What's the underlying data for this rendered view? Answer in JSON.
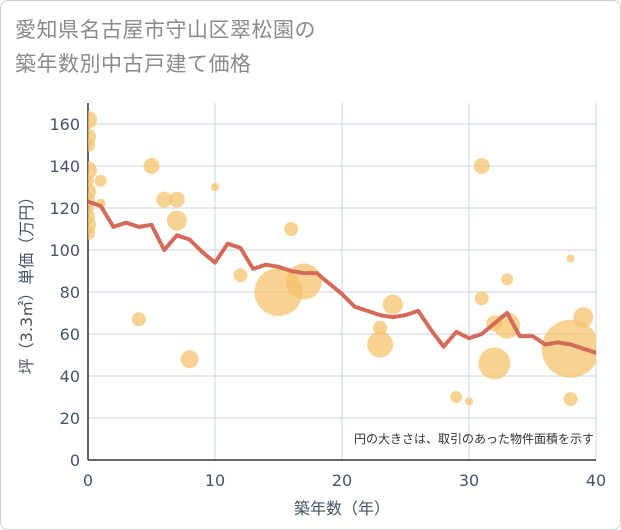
{
  "title_lines": [
    "愛知県名古屋市守山区翠松園の",
    "築年数別中古戸建て価格"
  ],
  "chart_data": {
    "type": "scatter",
    "title": "愛知県名古屋市守山区翠松園の築年数別中古戸建て価格",
    "xlabel": "築年数（年）",
    "ylabel": "坪（3.3㎡）単価（万円）",
    "xlim": [
      0,
      40
    ],
    "ylim": [
      0,
      170
    ],
    "xticks": [
      0,
      10,
      20,
      30,
      40
    ],
    "yticks": [
      0,
      20,
      40,
      60,
      80,
      100,
      120,
      140,
      160
    ],
    "grid": true,
    "note": "円の大きさは、取引のあった物件面積を示す",
    "colors": {
      "bubble": "#f5c067",
      "line": "#d36b58",
      "grid": "#c9d6e3",
      "text": "#44546a"
    },
    "bubbles": [
      {
        "x": 0,
        "y": 162,
        "s": 9
      },
      {
        "x": 0,
        "y": 154,
        "s": 8
      },
      {
        "x": 0,
        "y": 150,
        "s": 7
      },
      {
        "x": 0,
        "y": 138,
        "s": 9
      },
      {
        "x": 0,
        "y": 133,
        "s": 6
      },
      {
        "x": 0,
        "y": 128,
        "s": 8
      },
      {
        "x": 0,
        "y": 124,
        "s": 7
      },
      {
        "x": 0,
        "y": 120,
        "s": 6
      },
      {
        "x": 0,
        "y": 116,
        "s": 7
      },
      {
        "x": 0,
        "y": 112,
        "s": 8
      },
      {
        "x": 0,
        "y": 108,
        "s": 7
      },
      {
        "x": 1,
        "y": 133,
        "s": 6
      },
      {
        "x": 1,
        "y": 122,
        "s": 5
      },
      {
        "x": 4,
        "y": 67,
        "s": 7
      },
      {
        "x": 5,
        "y": 140,
        "s": 8
      },
      {
        "x": 6,
        "y": 124,
        "s": 8
      },
      {
        "x": 7,
        "y": 124,
        "s": 8
      },
      {
        "x": 7,
        "y": 114,
        "s": 10
      },
      {
        "x": 8,
        "y": 48,
        "s": 9
      },
      {
        "x": 10,
        "y": 130,
        "s": 4
      },
      {
        "x": 12,
        "y": 88,
        "s": 7
      },
      {
        "x": 15,
        "y": 80,
        "s": 24
      },
      {
        "x": 16,
        "y": 110,
        "s": 7
      },
      {
        "x": 17,
        "y": 85,
        "s": 18
      },
      {
        "x": 23,
        "y": 63,
        "s": 7
      },
      {
        "x": 23,
        "y": 55,
        "s": 13
      },
      {
        "x": 24,
        "y": 74,
        "s": 10
      },
      {
        "x": 29,
        "y": 30,
        "s": 6
      },
      {
        "x": 30,
        "y": 28,
        "s": 4
      },
      {
        "x": 31,
        "y": 140,
        "s": 8
      },
      {
        "x": 31,
        "y": 77,
        "s": 7
      },
      {
        "x": 32,
        "y": 46,
        "s": 16
      },
      {
        "x": 32,
        "y": 65,
        "s": 8
      },
      {
        "x": 33,
        "y": 86,
        "s": 6
      },
      {
        "x": 33,
        "y": 64,
        "s": 13
      },
      {
        "x": 38,
        "y": 96,
        "s": 4
      },
      {
        "x": 38,
        "y": 53,
        "s": 29
      },
      {
        "x": 38,
        "y": 29,
        "s": 7
      },
      {
        "x": 39,
        "y": 68,
        "s": 10
      }
    ],
    "line": {
      "x": [
        0,
        1,
        2,
        3,
        4,
        5,
        6,
        7,
        8,
        9,
        10,
        11,
        12,
        13,
        14,
        15,
        16,
        17,
        18,
        19,
        20,
        21,
        22,
        23,
        24,
        25,
        26,
        27,
        28,
        29,
        30,
        31,
        32,
        33,
        34,
        35,
        36,
        37,
        38,
        39,
        40
      ],
      "y": [
        123,
        121,
        111,
        113,
        111,
        112,
        100,
        107,
        105,
        99,
        94,
        103,
        101,
        91,
        93,
        92,
        90,
        89,
        89,
        84,
        79,
        73,
        71,
        69,
        68,
        69,
        71,
        62,
        54,
        61,
        58,
        60,
        65,
        70,
        59,
        59,
        55,
        56,
        55,
        53,
        51
      ]
    }
  }
}
